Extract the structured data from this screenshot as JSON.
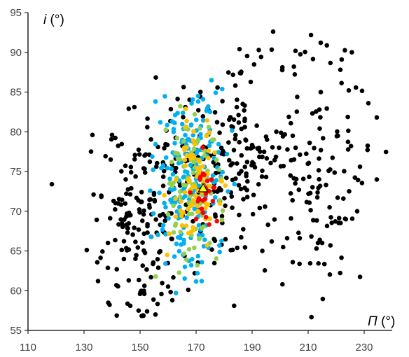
{
  "chart_data": {
    "type": "scatter",
    "title": "",
    "xlabel": "Π (°)",
    "xlabel_symbol": "Π",
    "xlabel_unit": "(°)",
    "ylabel": "i (°)",
    "ylabel_symbol": "i",
    "ylabel_unit": "(°)",
    "xlim": [
      110,
      240
    ],
    "ylim": [
      55,
      95
    ],
    "xticks": [
      110,
      130,
      150,
      170,
      190,
      210,
      230
    ],
    "yticks": [
      55,
      60,
      65,
      70,
      75,
      80,
      85,
      90,
      95
    ],
    "grid": false,
    "legend": "none",
    "series": [
      {
        "color": "#000000",
        "seed": 7,
        "count": 520,
        "points": [
          [
            118.5,
            73.4
          ],
          [
            197.5,
            92.6
          ],
          [
            214.5,
            91.2
          ],
          [
            185.5,
            90.4
          ],
          [
            221.5,
            87.8
          ],
          [
            231.5,
            83.6
          ],
          [
            234.5,
            81.8
          ],
          [
            234.5,
            74.0
          ],
          [
            227.5,
            70.0
          ],
          [
            228.5,
            75.6
          ],
          [
            224.5,
            85.2
          ],
          [
            202.5,
            66.6
          ],
          [
            213.5,
            66.0
          ],
          [
            204.5,
            63.6
          ],
          [
            197.0,
            66.2
          ],
          [
            207.0,
            66.6
          ],
          [
            135.0,
            61.2
          ],
          [
            146.5,
            58.1
          ],
          [
            150.0,
            59.6
          ],
          [
            151.5,
            59.6
          ],
          [
            152.5,
            57.4
          ],
          [
            155.5,
            57.0
          ],
          [
            161.5,
            58.8
          ],
          [
            173.5,
            78.0
          ],
          [
            183.0,
            76.0
          ],
          [
            186.0,
            72.8
          ],
          [
            178.5,
            71.3
          ],
          [
            132.5,
            77.5
          ],
          [
            133.0,
            79.6
          ],
          [
            140.0,
            79.6
          ],
          [
            169.5,
            62.2
          ],
          [
            195.0,
            74.3
          ],
          [
            215.0,
            66.0
          ],
          [
            183.5,
            77.7
          ],
          [
            177.5,
            81.2
          ]
        ]
      },
      {
        "color": "#00B0F0",
        "seed": 11,
        "count": 190,
        "points": [
          [
            172.5,
            84.1
          ],
          [
            177.0,
            84.9
          ],
          [
            175.5,
            86.5
          ],
          [
            155.5,
            83.8
          ],
          [
            162.5,
            82.1
          ],
          [
            172.0,
            61.2
          ],
          [
            170.5,
            62.2
          ],
          [
            166.0,
            63.0
          ],
          [
            174.0,
            79.6
          ],
          [
            158.0,
            67.7
          ],
          [
            181.0,
            77.2
          ],
          [
            176.0,
            74.5
          ]
        ]
      },
      {
        "color": "#92D050",
        "seed": 23,
        "count": 95,
        "points": [
          [
            169.5,
            82.2
          ],
          [
            174.5,
            80.6
          ],
          [
            160.0,
            69.6
          ],
          [
            167.5,
            65.2
          ],
          [
            179.0,
            74.1
          ],
          [
            163.5,
            76.6
          ]
        ]
      },
      {
        "color": "#FFC000",
        "seed": 31,
        "count": 85,
        "points": [
          [
            169.0,
            78.9
          ],
          [
            166.0,
            72.4
          ],
          [
            174.5,
            77.6
          ],
          [
            165.0,
            68.2
          ],
          [
            170.5,
            70.7
          ],
          [
            173.0,
            74.4
          ]
        ]
      },
      {
        "color": "#FF0000",
        "seed": 43,
        "count": 26,
        "points": [
          [
            171.5,
            74.3
          ],
          [
            174.0,
            73.8
          ],
          [
            172.5,
            69.8
          ],
          [
            172.0,
            70.3
          ],
          [
            175.5,
            74.0
          ],
          [
            170.0,
            69.0
          ],
          [
            173.5,
            72.2
          ],
          [
            176.5,
            73.0
          ],
          [
            171.0,
            71.6
          ]
        ]
      }
    ],
    "marker": {
      "shape": "triangle",
      "x": 172.5,
      "y": 72.9,
      "fill": "#FFFF00",
      "stroke": "#000000"
    }
  }
}
